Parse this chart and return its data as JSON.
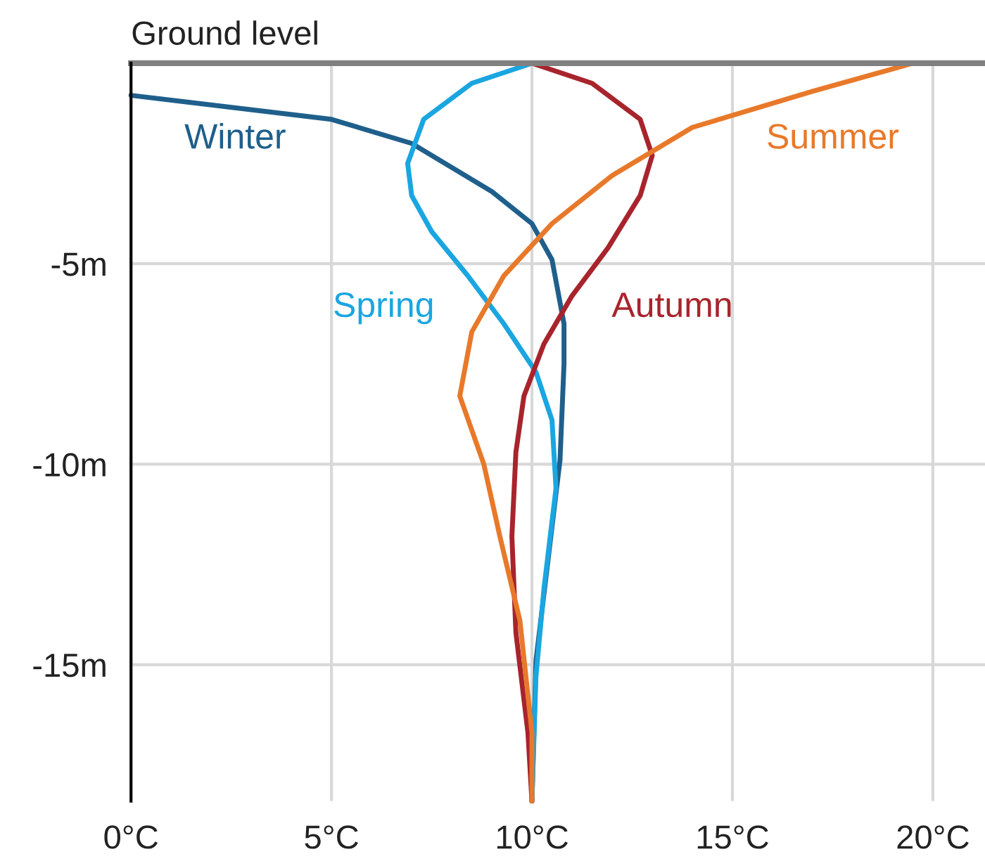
{
  "chart_data": {
    "type": "line",
    "xlim": [
      0,
      21.3
    ],
    "ylim": [
      -18.4,
      0
    ],
    "xticks": [
      {
        "value": 0,
        "label": "0°C"
      },
      {
        "value": 5,
        "label": "5°C"
      },
      {
        "value": 10,
        "label": "10°C"
      },
      {
        "value": 15,
        "label": "15°C"
      },
      {
        "value": 20,
        "label": "20°C"
      }
    ],
    "yticks": [
      {
        "value": -5,
        "label": "-5m"
      },
      {
        "value": -10,
        "label": "-10m"
      },
      {
        "value": -15,
        "label": "-15m"
      }
    ],
    "grid": true,
    "legend": false,
    "marker": "none",
    "line_style": "solid",
    "ref_lines": [
      {
        "axis": "y",
        "value": 0,
        "label": "Ground level",
        "color": "#808080"
      }
    ],
    "series": [
      {
        "name": "Winter",
        "color": "#1f5f8b",
        "x": [
          0,
          5,
          7,
          9,
          10,
          10.5,
          10.8,
          10.8,
          10.7,
          10.4,
          10.1,
          10
        ],
        "values": [
          -0.8,
          -1.4,
          -2.0,
          -3.2,
          -4.0,
          -4.9,
          -6.5,
          -7.5,
          -9.9,
          -12.4,
          -14.9,
          -18.4
        ]
      },
      {
        "name": "Spring",
        "color": "#1aa6e0",
        "x": [
          10,
          8.5,
          7.3,
          6.9,
          7.0,
          7.5,
          8.4,
          9.3,
          10.1,
          10.5,
          10.6,
          10.3,
          10.1,
          10
        ],
        "values": [
          0,
          -0.5,
          -1.4,
          -2.5,
          -3.3,
          -4.2,
          -5.3,
          -6.5,
          -7.7,
          -8.9,
          -10.6,
          -13.1,
          -15.3,
          -18.4
        ]
      },
      {
        "name": "Autumn",
        "color": "#a8242c",
        "x": [
          10,
          11.5,
          12.7,
          13.0,
          12.7,
          11.9,
          11.0,
          10.3,
          9.8,
          9.6,
          9.5,
          9.6,
          9.9,
          10
        ],
        "values": [
          0,
          -0.5,
          -1.4,
          -2.3,
          -3.3,
          -4.6,
          -5.8,
          -7.0,
          -8.3,
          -9.7,
          -11.8,
          -14.2,
          -16.7,
          -18.4
        ]
      },
      {
        "name": "Summer",
        "color": "#e8792a",
        "x": [
          19.5,
          17,
          14,
          12,
          10.5,
          9.3,
          8.5,
          8.2,
          8.8,
          9.2,
          9.7,
          10.0,
          10
        ],
        "values": [
          0,
          -0.7,
          -1.6,
          -2.8,
          -4.0,
          -5.3,
          -6.7,
          -8.3,
          -10.0,
          -11.8,
          -13.9,
          -16.7,
          -18.4
        ]
      }
    ]
  }
}
